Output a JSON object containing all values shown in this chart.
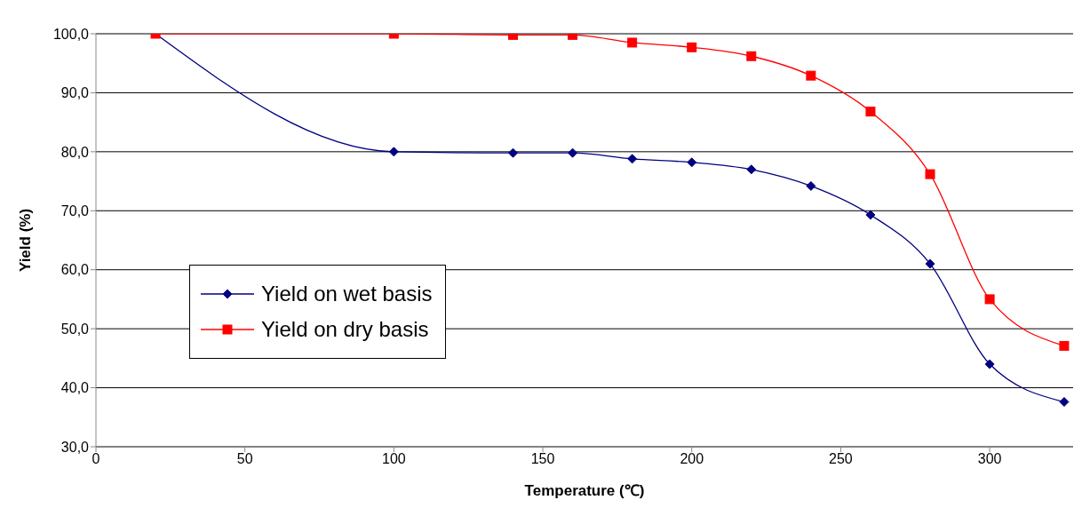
{
  "chart_data": {
    "type": "line",
    "xlabel": "Temperature (℃)",
    "ylabel": "Yield (%)",
    "x": [
      20,
      100,
      140,
      160,
      180,
      200,
      220,
      240,
      260,
      280,
      300,
      325
    ],
    "series": [
      {
        "name": "Yield on wet basis",
        "color": "#000080",
        "marker": "diamond",
        "values": [
          100,
          80,
          79.8,
          79.8,
          78.8,
          78.2,
          77,
          74.2,
          69.3,
          61,
          44,
          37.6
        ]
      },
      {
        "name": "Yield on dry basis",
        "color": "#ff0000",
        "marker": "square",
        "values": [
          100,
          100,
          99.8,
          99.8,
          98.5,
          97.7,
          96.2,
          92.9,
          86.8,
          76.2,
          55,
          47.1
        ]
      }
    ],
    "xlim": [
      0,
      328
    ],
    "xticks": [
      0,
      50,
      100,
      150,
      200,
      250,
      300
    ],
    "ylim": [
      30,
      100
    ],
    "yticks": [
      {
        "value": 30,
        "label": "30,0"
      },
      {
        "value": 40,
        "label": "40,0"
      },
      {
        "value": 50,
        "label": "50,0"
      },
      {
        "value": 60,
        "label": "60,0"
      },
      {
        "value": 70,
        "label": "70,0"
      },
      {
        "value": 80,
        "label": "80,0"
      },
      {
        "value": 90,
        "label": "90,0"
      },
      {
        "value": 100,
        "label": "100,0"
      }
    ],
    "grid": "y",
    "legend": "left",
    "line_style": "solid"
  }
}
